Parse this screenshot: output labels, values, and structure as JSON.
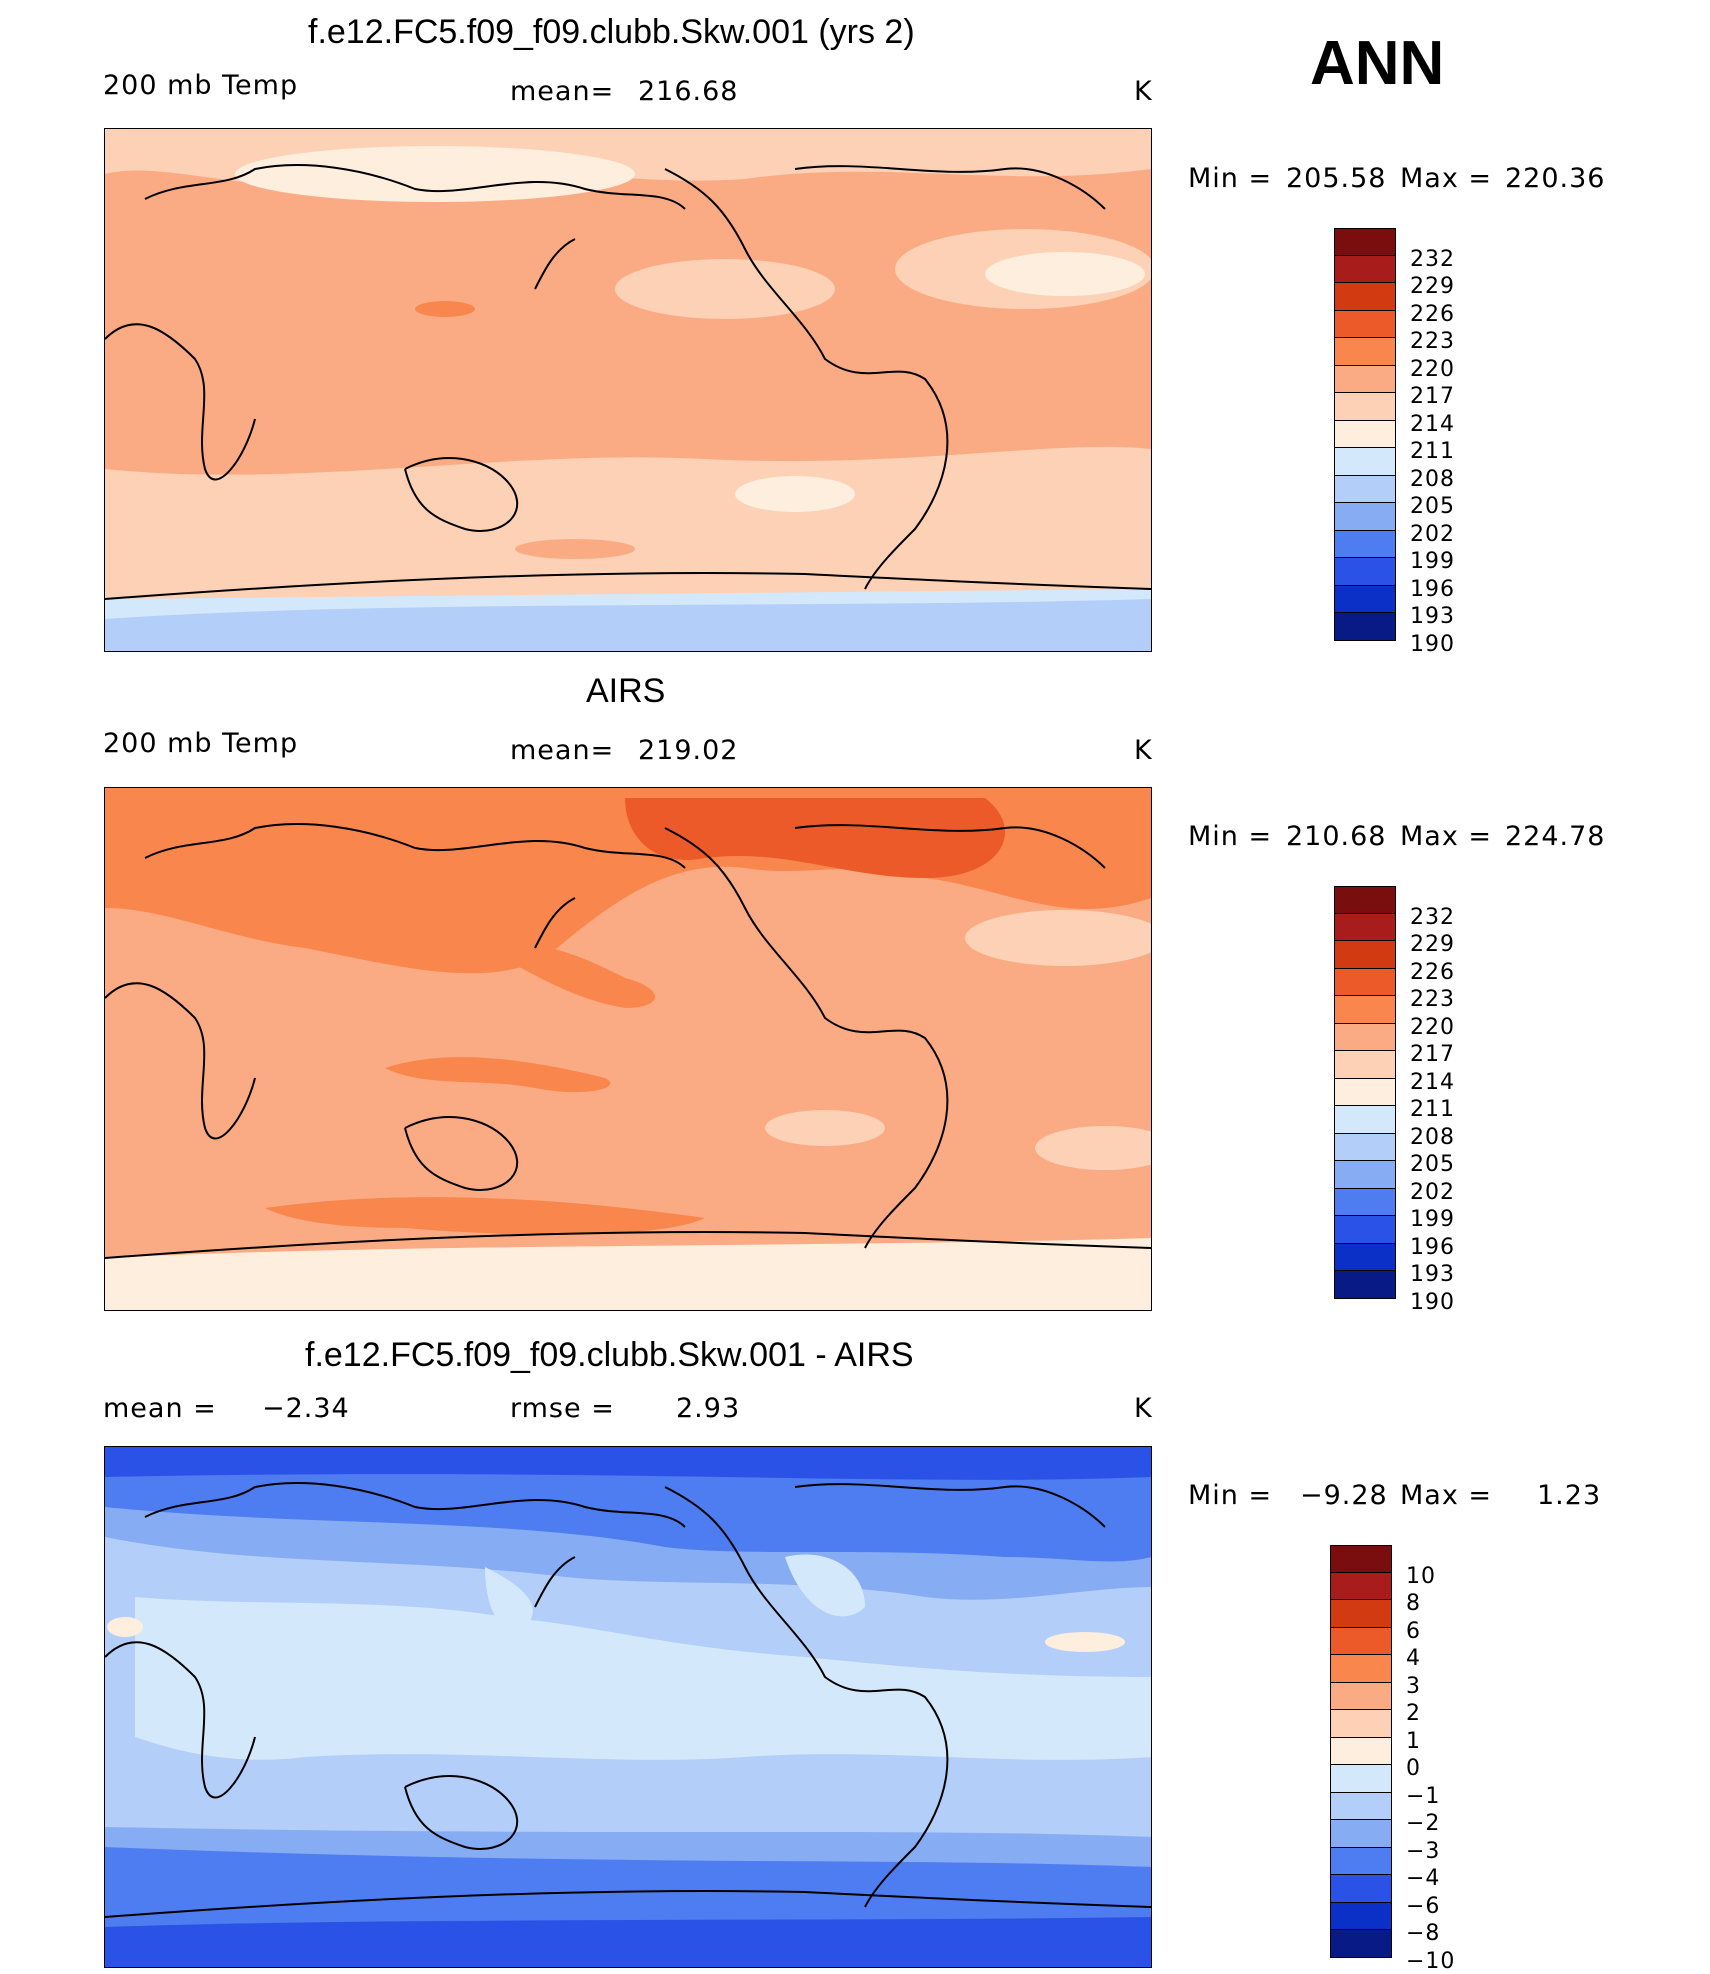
{
  "season": "ANN",
  "units": "K",
  "panels": [
    {
      "id": "model",
      "title": "f.e12.FC5.f09_f09.clubb.Skw.001 (yrs 2)",
      "left_label": "200 mb Temp",
      "stat_label": "mean=",
      "stat_value": "216.68",
      "units": "K",
      "min_label": "Min =",
      "min_value": "205.58",
      "max_label": "Max =",
      "max_value": "220.36",
      "colorbar": {
        "levels": [
          "232",
          "229",
          "226",
          "223",
          "220",
          "217",
          "214",
          "211",
          "208",
          "205",
          "202",
          "199",
          "196",
          "193",
          "190"
        ],
        "colors": [
          "#7a0e0e",
          "#a81c1c",
          "#d23b12",
          "#ec5a2a",
          "#f9864d",
          "#fbab83",
          "#fcd1b5",
          "#fdeede",
          "#d4e8fb",
          "#b3cef8",
          "#86acf4",
          "#4d7df0",
          "#2a52e6",
          "#0b30c7",
          "#071a85"
        ]
      }
    },
    {
      "id": "obs",
      "title": "AIRS",
      "left_label": "200 mb Temp",
      "stat_label": "mean=",
      "stat_value": "219.02",
      "units": "K",
      "min_label": "Min =",
      "min_value": "210.68",
      "max_label": "Max =",
      "max_value": "224.78",
      "colorbar": {
        "levels": [
          "232",
          "229",
          "226",
          "223",
          "220",
          "217",
          "214",
          "211",
          "208",
          "205",
          "202",
          "199",
          "196",
          "193",
          "190"
        ],
        "colors": [
          "#7a0e0e",
          "#a81c1c",
          "#d23b12",
          "#ec5a2a",
          "#f9864d",
          "#fbab83",
          "#fcd1b5",
          "#fdeede",
          "#d4e8fb",
          "#b3cef8",
          "#86acf4",
          "#4d7df0",
          "#2a52e6",
          "#0b30c7",
          "#071a85"
        ]
      }
    },
    {
      "id": "diff",
      "title": "f.e12.FC5.f09_f09.clubb.Skw.001 - AIRS",
      "left_label": "mean =",
      "left_value": "−2.34",
      "stat_label": "rmse =",
      "stat_value": "2.93",
      "units": "K",
      "min_label": "Min =",
      "min_value": "−9.28",
      "max_label": "Max =",
      "max_value": "1.23",
      "colorbar": {
        "levels": [
          "10",
          "8",
          "6",
          "4",
          "3",
          "2",
          "1",
          "0",
          "−1",
          "−2",
          "−3",
          "−4",
          "−6",
          "−8",
          "−10"
        ],
        "colors": [
          "#7a0e0e",
          "#a81c1c",
          "#d23b12",
          "#ec5a2a",
          "#f9864d",
          "#fbab83",
          "#fcd1b5",
          "#fdeede",
          "#d4e8fb",
          "#b3cef8",
          "#86acf4",
          "#4d7df0",
          "#2a52e6",
          "#0b30c7",
          "#071a85"
        ]
      }
    }
  ]
}
